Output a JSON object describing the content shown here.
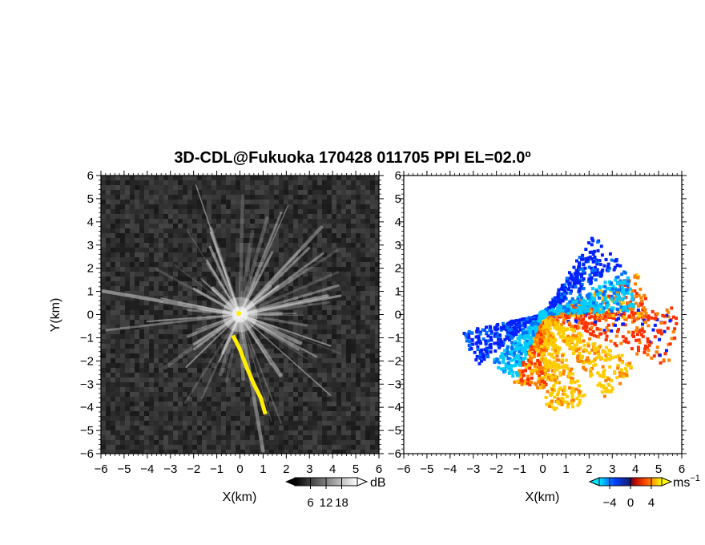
{
  "title": "3D-CDL@Fukuoka 170428 011705 PPI EL=02.0º",
  "colors": {
    "background_left": "#2a2a2a",
    "yellow_echo": "#ffee00",
    "velocity_positive": "#ff5a00",
    "velocity_negative": "#0033ff"
  },
  "chart_data": [
    {
      "type": "heatmap",
      "panel": "left",
      "quantity": "echo intensity",
      "xlabel": "X(km)",
      "ylabel": "Y(km)",
      "xlim": [
        -6,
        6
      ],
      "ylim": [
        -6,
        6
      ],
      "xticks": [
        "−6",
        "−5",
        "−4",
        "−3",
        "−2",
        "−1",
        "0",
        "1",
        "2",
        "3",
        "4",
        "5",
        "6"
      ],
      "yticks": [
        "6",
        "5",
        "4",
        "3",
        "2",
        "1",
        "0",
        "−1",
        "−2",
        "−3",
        "−4",
        "−5",
        "−6"
      ],
      "colorbar": {
        "unit": "dB",
        "ticks": [
          "6",
          "12",
          "18"
        ],
        "range": [
          0,
          24
        ]
      },
      "highlight_band": {
        "color": "yellow",
        "points": [
          [
            -0.3,
            -0.9
          ],
          [
            0.0,
            -1.5
          ],
          [
            0.3,
            -2.3
          ],
          [
            0.6,
            -3.0
          ],
          [
            0.9,
            -3.6
          ],
          [
            1.1,
            -4.3
          ]
        ]
      }
    },
    {
      "type": "heatmap",
      "panel": "right",
      "quantity": "radial velocity",
      "xlabel": "X(km)",
      "xlim": [
        -6,
        6
      ],
      "ylim": [
        -6,
        6
      ],
      "xticks": [
        "−6",
        "−5",
        "−4",
        "−3",
        "−2",
        "−1",
        "0",
        "1",
        "2",
        "3",
        "4",
        "5",
        "6"
      ],
      "colorbar": {
        "unit": "ms",
        "unit_exp": "−1",
        "ticks": [
          "−4",
          "0",
          "4"
        ],
        "range": [
          -6,
          6
        ]
      },
      "lobes": [
        {
          "direction_deg": 100,
          "max_range_km": 5.8,
          "velocity": 3
        },
        {
          "direction_deg": 80,
          "max_range_km": 4.5,
          "velocity": 4
        },
        {
          "direction_deg": 130,
          "max_range_km": 4.5,
          "velocity": 5
        },
        {
          "direction_deg": 190,
          "max_range_km": 3.2,
          "velocity": 4
        },
        {
          "direction_deg": 45,
          "max_range_km": 4.0,
          "velocity": -3
        },
        {
          "direction_deg": 75,
          "max_range_km": 4.0,
          "velocity": -5
        },
        {
          "direction_deg": 245,
          "max_range_km": 3.5,
          "velocity": -3
        },
        {
          "direction_deg": 165,
          "max_range_km": 4.2,
          "velocity": 5
        },
        {
          "direction_deg": 215,
          "max_range_km": 3.0,
          "velocity": -5
        }
      ]
    }
  ]
}
